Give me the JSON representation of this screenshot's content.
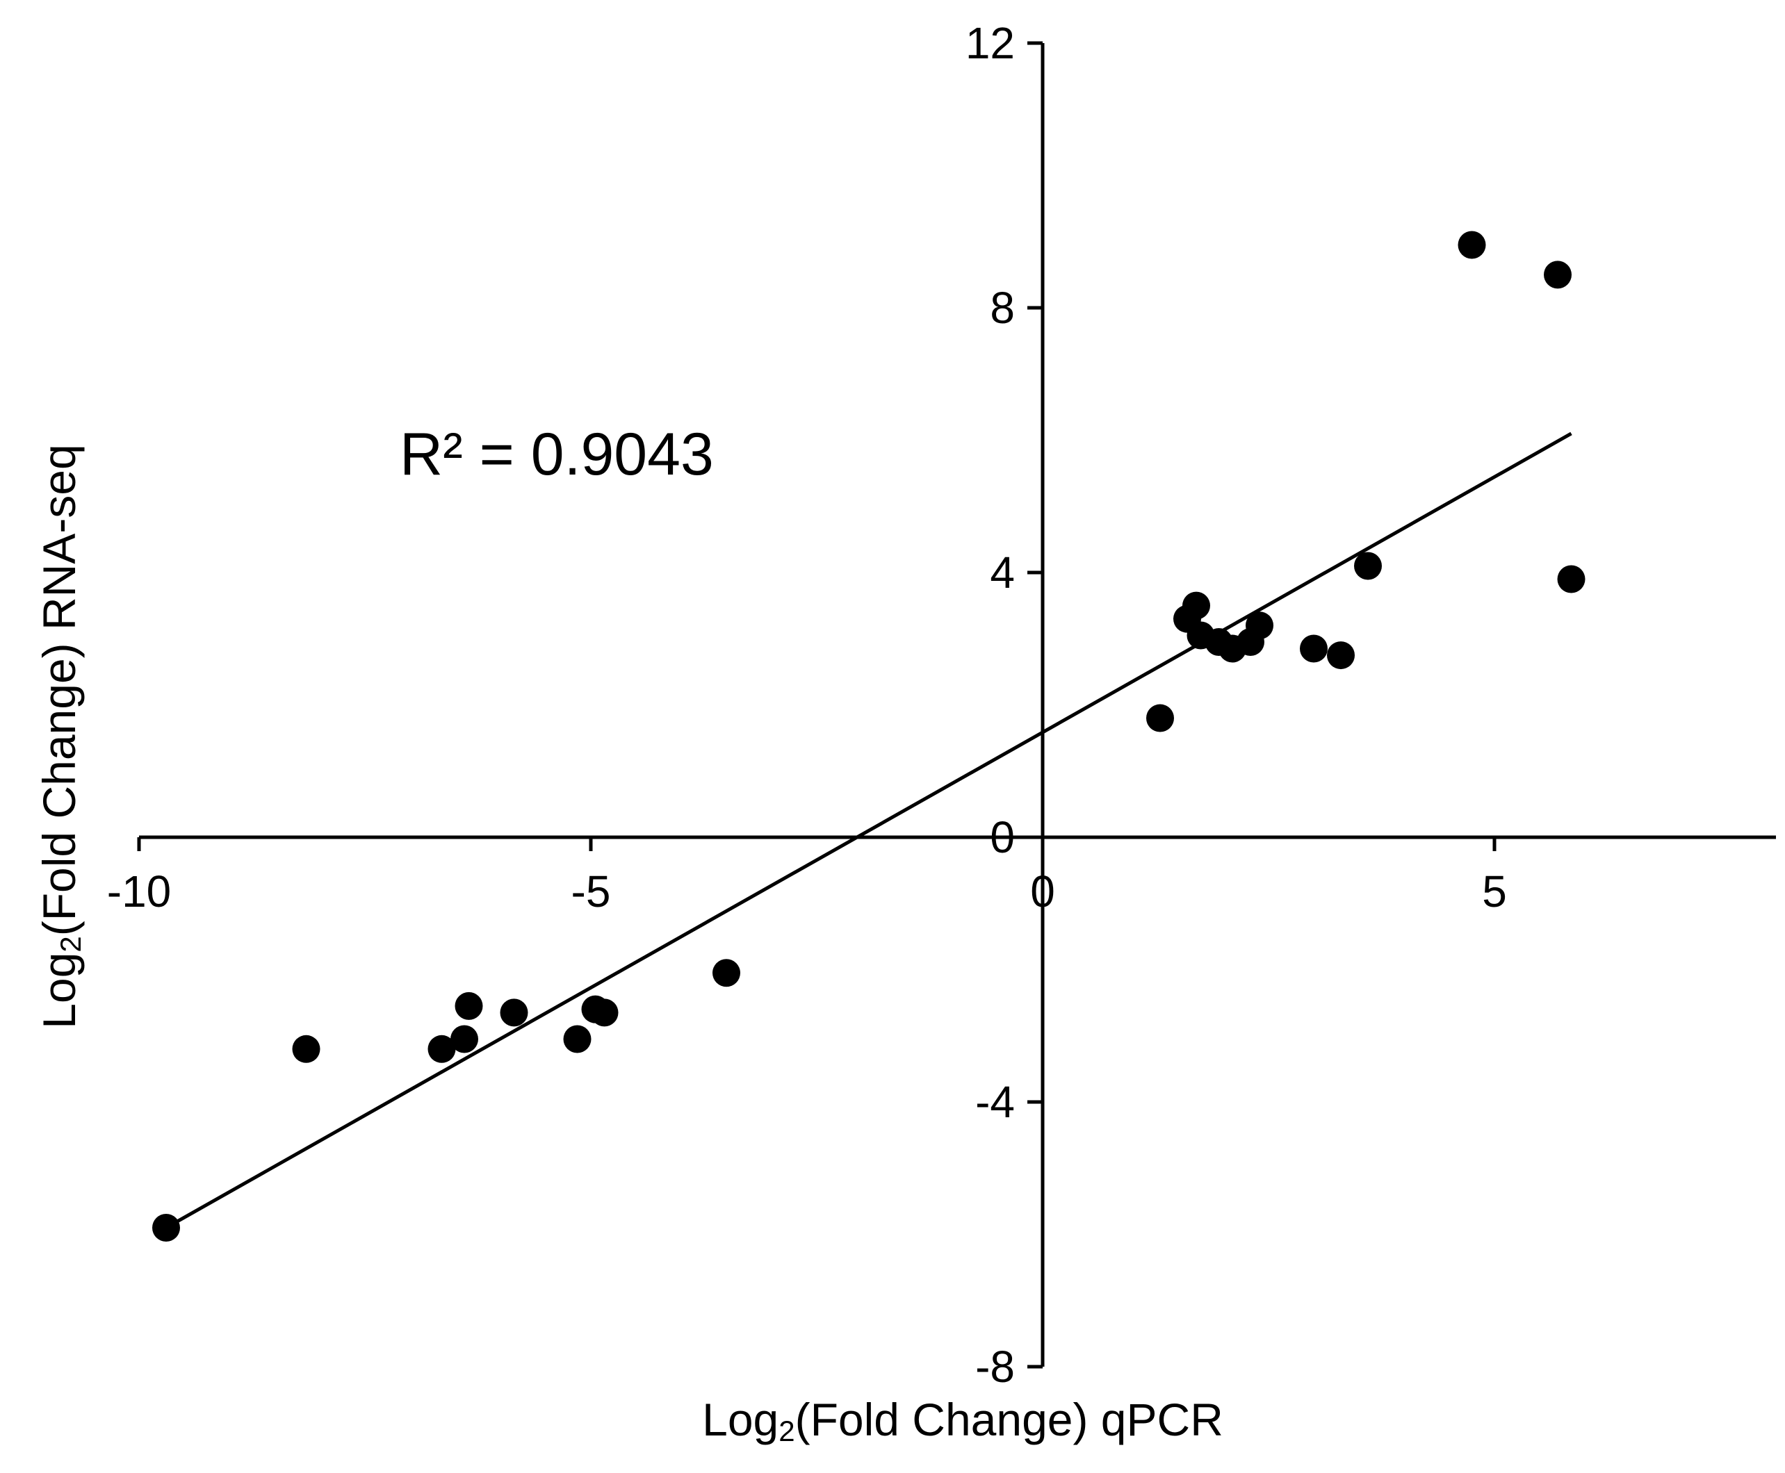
{
  "chart_data": {
    "type": "scatter",
    "title": "",
    "xlabel": "Log₂(Fold Change) qPCR",
    "xlabel_parts": {
      "prefix": "Log",
      "sub": "2",
      "suffix": "(Fold Change) qPCR"
    },
    "ylabel": "Log₂(Fold Change) RNA-seq",
    "ylabel_parts": {
      "prefix": "Log",
      "sub": "2",
      "suffix": "(Fold Change) RNA-seq"
    },
    "xlim": [
      -10,
      8
    ],
    "ylim": [
      -8,
      12
    ],
    "x_ticks": [
      -10,
      -5,
      0,
      5
    ],
    "x_tick_labels": [
      "-10",
      "-5",
      "0",
      "5"
    ],
    "y_ticks": [
      -8,
      -4,
      0,
      4,
      8,
      12
    ],
    "y_tick_labels": [
      "-8",
      "-4",
      "0",
      "4",
      "8",
      "12"
    ],
    "grid": false,
    "axes_cross_at_origin": true,
    "annotation": "R² = 0.9043",
    "marker_color": "#000000",
    "trendline": {
      "x": [
        -9.7,
        5.85
      ],
      "y": [
        -5.9,
        6.1
      ]
    },
    "points": [
      {
        "x": -9.7,
        "y": -5.9
      },
      {
        "x": -8.15,
        "y": -3.2
      },
      {
        "x": -6.65,
        "y": -3.2
      },
      {
        "x": -6.4,
        "y": -3.05
      },
      {
        "x": -6.35,
        "y": -2.55
      },
      {
        "x": -5.85,
        "y": -2.65
      },
      {
        "x": -5.15,
        "y": -3.05
      },
      {
        "x": -4.95,
        "y": -2.6
      },
      {
        "x": -4.85,
        "y": -2.65
      },
      {
        "x": -3.5,
        "y": -2.05
      },
      {
        "x": 1.3,
        "y": 1.8
      },
      {
        "x": 1.6,
        "y": 3.3
      },
      {
        "x": 1.7,
        "y": 3.5
      },
      {
        "x": 1.75,
        "y": 3.05
      },
      {
        "x": 1.95,
        "y": 2.95
      },
      {
        "x": 2.1,
        "y": 2.85
      },
      {
        "x": 2.3,
        "y": 2.95
      },
      {
        "x": 2.4,
        "y": 3.2
      },
      {
        "x": 3.0,
        "y": 2.85
      },
      {
        "x": 3.3,
        "y": 2.75
      },
      {
        "x": 3.6,
        "y": 4.1
      },
      {
        "x": 4.75,
        "y": 8.95
      },
      {
        "x": 5.7,
        "y": 8.5
      },
      {
        "x": 5.85,
        "y": 3.9
      }
    ]
  }
}
